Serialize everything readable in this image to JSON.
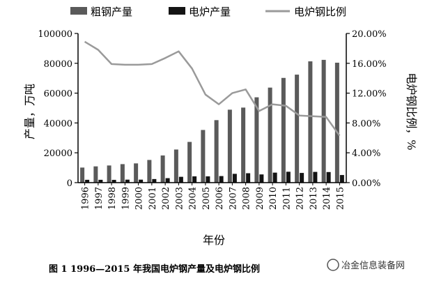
{
  "caption": "图 1   1996—2015 年我国电炉钢产量及电炉钢比例",
  "watermark": "冶金信息装备网",
  "colors": {
    "crude_bar": "#5a5a5a",
    "eaf_bar": "#141414",
    "ratio_line": "#9a9a9a",
    "axis": "#000000"
  },
  "chart_data": {
    "type": "bar",
    "xlabel": "年份",
    "ylabel": "产量，万吨",
    "y2label": "电炉钢比例，%",
    "ylim": [
      0,
      100000
    ],
    "y2lim": [
      0,
      20
    ],
    "yticks": [
      "0",
      "20000",
      "40000",
      "60000",
      "80000",
      "100000"
    ],
    "y2ticks": [
      "0.00%",
      "4.00%",
      "8.00%",
      "12.00%",
      "16.00%",
      "20.00%"
    ],
    "categories": [
      "1996",
      "1997",
      "1998",
      "1999",
      "2000",
      "2001",
      "2002",
      "2003",
      "2004",
      "2005",
      "2006",
      "2007",
      "2008",
      "2009",
      "2010",
      "2011",
      "2012",
      "2013",
      "2014",
      "2015"
    ],
    "series": [
      {
        "name": "粗钢产量",
        "kind": "bar",
        "axis": "left",
        "values": [
          10100,
          10900,
          11500,
          12400,
          12900,
          15200,
          18200,
          22200,
          27300,
          35300,
          41900,
          48900,
          50300,
          57200,
          63700,
          70200,
          72400,
          81300,
          82300,
          80400
        ]
      },
      {
        "name": "电炉产量",
        "kind": "bar",
        "axis": "left",
        "values": [
          1900,
          1900,
          1850,
          2000,
          2000,
          2400,
          3000,
          3900,
          4200,
          4200,
          4400,
          5900,
          6300,
          5500,
          6700,
          7300,
          6500,
          7200,
          7100,
          5100
        ]
      },
      {
        "name": "电炉钢比例",
        "kind": "line",
        "axis": "right",
        "values": [
          18.9,
          17.8,
          15.9,
          15.8,
          15.8,
          15.9,
          16.7,
          17.6,
          15.3,
          11.8,
          10.5,
          12.0,
          12.5,
          9.6,
          10.5,
          10.3,
          9.0,
          8.9,
          8.8,
          6.3
        ]
      }
    ],
    "legend_position": "top",
    "grid": false
  }
}
